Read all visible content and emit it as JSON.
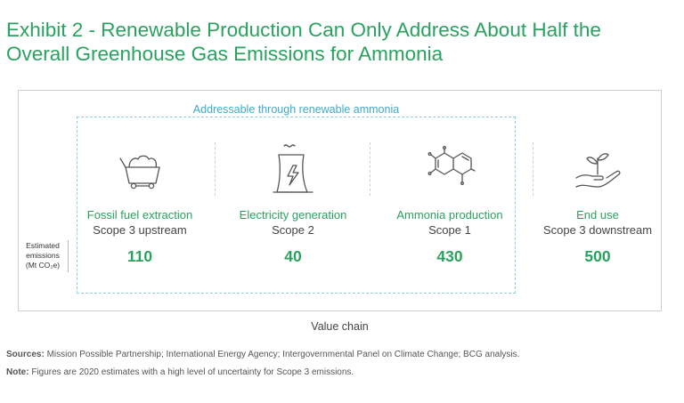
{
  "title_line1": "Exhibit 2 - Renewable Production Can Only Address About Half the",
  "title_line2": "Overall Greenhouse Gas Emissions for Ammonia",
  "addressable_label": "Addressable through renewable ammonia",
  "estimate_label": [
    "Estimated",
    "emissions",
    "(Mt CO₂e)"
  ],
  "stages": [
    {
      "name": "Fossil fuel extraction",
      "scope": "Scope 3 upstream",
      "value": "110",
      "icon": "coal-cart-icon"
    },
    {
      "name": "Electricity generation",
      "scope": "Scope 2",
      "value": "40",
      "icon": "power-plant-icon"
    },
    {
      "name": "Ammonia production",
      "scope": "Scope 1",
      "value": "430",
      "icon": "molecule-icon"
    },
    {
      "name": "End use",
      "scope": "Scope 3 downstream",
      "value": "500",
      "icon": "plant-in-hand-icon"
    }
  ],
  "axis_label": "Value chain",
  "sources_label": "Sources:",
  "sources_text": " Mission Possible Partnership; International Energy Agency; Intergovernmental Panel on Climate Change; BCG analysis.",
  "note_label": "Note:",
  "note_text": " Figures are 2020 estimates with a high level of uncertainty for Scope 3 emissions.",
  "colors": {
    "accent": "#2aa25f",
    "addressable": "#3fa9c6",
    "frame": "#cfcfcf"
  }
}
